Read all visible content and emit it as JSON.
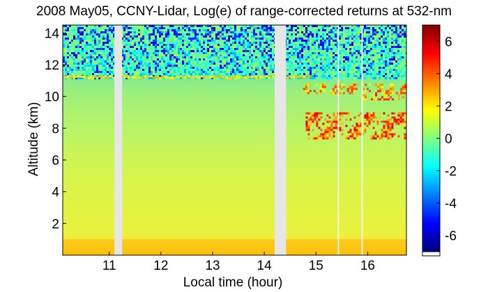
{
  "chart_data": {
    "type": "heatmap",
    "title": "2008 May05, CCNY-Lidar, Log(e) of range-corrected returns at 532-nm",
    "xlabel": "Local time (hour)",
    "ylabel": "Altitude (km)",
    "xlim": [
      10.1,
      16.75
    ],
    "ylim": [
      0,
      14.5
    ],
    "x_ticks": [
      11,
      12,
      13,
      14,
      15,
      16
    ],
    "y_ticks": [
      2,
      4,
      6,
      8,
      10,
      12,
      14
    ],
    "data_gaps_hours": [
      [
        11.1,
        11.25
      ],
      [
        14.2,
        14.42
      ]
    ],
    "tropopause_cirrus_km": 11.2,
    "cirrus_layers": [
      {
        "t_start": 14.75,
        "t_end": 15.8,
        "alt_bottom_km": 10.2,
        "alt_top_km": 10.8,
        "value_max": 5
      },
      {
        "t_start": 15.9,
        "t_end": 16.75,
        "alt_bottom_km": 9.8,
        "alt_top_km": 10.8,
        "value_max": 5
      },
      {
        "t_start": 14.8,
        "t_end": 16.75,
        "alt_bottom_km": 7.3,
        "alt_top_km": 9.0,
        "value_max": 6
      }
    ],
    "colorbar": {
      "ticks": [
        6,
        4,
        2,
        0,
        -2,
        -4,
        -6
      ],
      "range": [
        -7,
        7
      ],
      "colormap": "jet"
    }
  }
}
